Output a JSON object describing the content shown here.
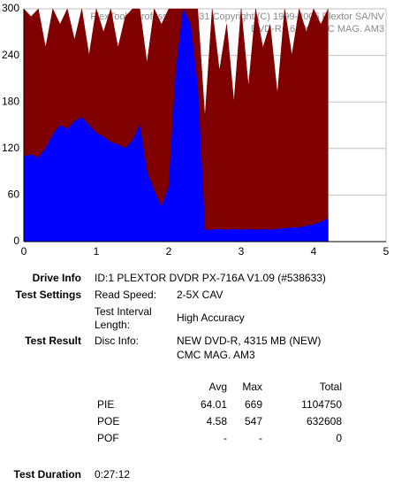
{
  "chart_data": {
    "type": "area",
    "watermark": [
      "PlexTools Professional 2.31 Copyright (C) 1999-2005 Plextor SA/NV",
      "DVD-R   16.0X   CMC MAG. AM3"
    ],
    "x": [
      0,
      0.1,
      0.2,
      0.3,
      0.4,
      0.5,
      0.6,
      0.7,
      0.8,
      0.9,
      1.0,
      1.1,
      1.2,
      1.3,
      1.4,
      1.5,
      1.6,
      1.7,
      1.8,
      1.9,
      2.0,
      2.1,
      2.2,
      2.3,
      2.4,
      2.5,
      2.6,
      2.7,
      2.8,
      2.9,
      3.0,
      3.1,
      3.2,
      3.3,
      3.4,
      3.5,
      3.6,
      3.7,
      3.8,
      3.9,
      4.0,
      4.1,
      4.2
    ],
    "series": [
      {
        "color": "#800000",
        "values": [
          300,
          290,
          300,
          250,
          300,
          280,
          300,
          260,
          300,
          240,
          300,
          270,
          300,
          250,
          290,
          300,
          300,
          230,
          300,
          280,
          300,
          300,
          300,
          300,
          300,
          160,
          300,
          220,
          280,
          180,
          300,
          200,
          300,
          250,
          280,
          190,
          300,
          240,
          300,
          270,
          300,
          280,
          300
        ]
      },
      {
        "color": "#0000ff",
        "values": [
          110,
          112,
          108,
          120,
          138,
          150,
          145,
          155,
          160,
          150,
          140,
          135,
          128,
          125,
          120,
          130,
          150,
          90,
          65,
          45,
          70,
          220,
          300,
          280,
          200,
          15,
          15,
          16,
          15,
          16,
          15,
          16,
          15,
          16,
          15,
          16,
          17,
          18,
          18,
          20,
          22,
          25,
          30
        ]
      }
    ],
    "xlim": [
      0,
      5
    ],
    "xticks": [
      0,
      1,
      2,
      3,
      4,
      5
    ],
    "ylim": [
      0,
      300
    ],
    "yticks": [
      0,
      60,
      120,
      180,
      240,
      300
    ],
    "grid": true
  },
  "info": {
    "drive_label": "Drive Info",
    "drive": "ID:1 PLEXTOR DVDR PX-716A V1.09 (#538633)",
    "settings_label": "Test Settings",
    "speed_label": "Read Speed:",
    "speed": "2-5X CAV",
    "interval_label": [
      "Test Interval",
      "Length:"
    ],
    "interval": "High Accuracy",
    "result_label": "Test Result",
    "disc_label": "Disc Info:",
    "disc": [
      "NEW DVD-R, 4315 MB (NEW)",
      "CMC MAG. AM3"
    ],
    "stats": {
      "header": [
        "Avg",
        "Max",
        "Total"
      ],
      "rows": [
        [
          "PIE",
          "64.01",
          "669",
          "1104750"
        ],
        [
          "POE",
          "4.58",
          "547",
          "632608"
        ],
        [
          "POF",
          "-",
          "-",
          "0"
        ]
      ]
    },
    "duration_label": "Test Duration",
    "duration": "0:27:12"
  }
}
